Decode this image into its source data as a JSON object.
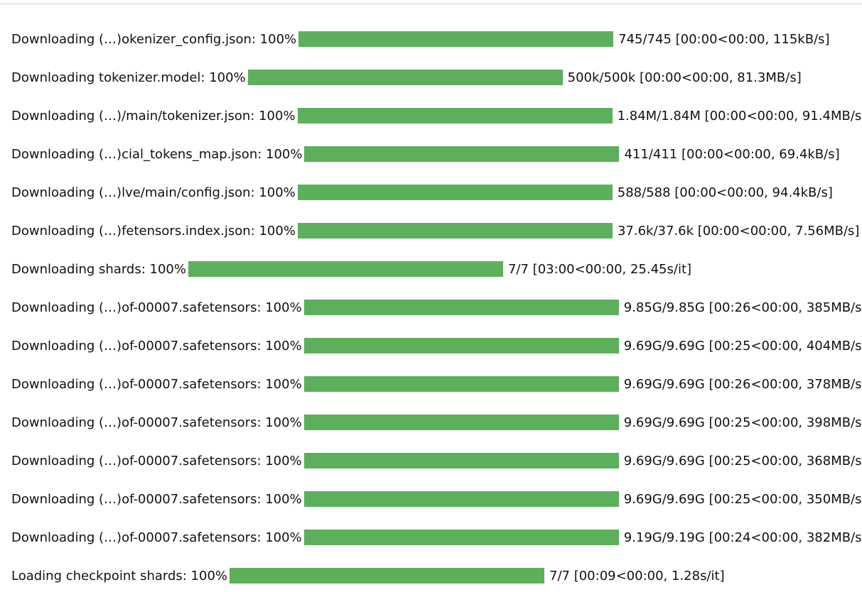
{
  "bar_color": "#5cb05c",
  "progress_rows": [
    {
      "prefix": "Downloading (…)okenizer_config.json: 100%",
      "progress": 1.0,
      "suffix": "745/745 [00:00<00:00, 115kB/s]"
    },
    {
      "prefix": "Downloading tokenizer.model: 100%",
      "progress": 1.0,
      "suffix": "500k/500k [00:00<00:00, 81.3MB/s]"
    },
    {
      "prefix": "Downloading (…)/main/tokenizer.json: 100%",
      "progress": 1.0,
      "suffix": "1.84M/1.84M [00:00<00:00, 91.4MB/s]"
    },
    {
      "prefix": "Downloading (…)cial_tokens_map.json: 100%",
      "progress": 1.0,
      "suffix": "411/411 [00:00<00:00, 69.4kB/s]"
    },
    {
      "prefix": "Downloading (…)lve/main/config.json: 100%",
      "progress": 1.0,
      "suffix": "588/588 [00:00<00:00, 94.4kB/s]"
    },
    {
      "prefix": "Downloading (…)fetensors.index.json: 100%",
      "progress": 1.0,
      "suffix": "37.6k/37.6k [00:00<00:00, 7.56MB/s]"
    },
    {
      "prefix": "Downloading shards: 100%",
      "progress": 1.0,
      "suffix": "7/7 [03:00<00:00, 25.45s/it]"
    },
    {
      "prefix": "Downloading (…)of-00007.safetensors: 100%",
      "progress": 1.0,
      "suffix": "9.85G/9.85G [00:26<00:00, 385MB/s]"
    },
    {
      "prefix": "Downloading (…)of-00007.safetensors: 100%",
      "progress": 1.0,
      "suffix": "9.69G/9.69G [00:25<00:00, 404MB/s]"
    },
    {
      "prefix": "Downloading (…)of-00007.safetensors: 100%",
      "progress": 1.0,
      "suffix": "9.69G/9.69G [00:26<00:00, 378MB/s]"
    },
    {
      "prefix": "Downloading (…)of-00007.safetensors: 100%",
      "progress": 1.0,
      "suffix": "9.69G/9.69G [00:25<00:00, 398MB/s]"
    },
    {
      "prefix": "Downloading (…)of-00007.safetensors: 100%",
      "progress": 1.0,
      "suffix": "9.69G/9.69G [00:25<00:00, 368MB/s]"
    },
    {
      "prefix": "Downloading (…)of-00007.safetensors: 100%",
      "progress": 1.0,
      "suffix": "9.69G/9.69G [00:25<00:00, 350MB/s]"
    },
    {
      "prefix": "Downloading (…)of-00007.safetensors: 100%",
      "progress": 1.0,
      "suffix": "9.19G/9.19G [00:24<00:00, 382MB/s]"
    },
    {
      "prefix": "Loading checkpoint shards: 100%",
      "progress": 1.0,
      "suffix": "7/7 [00:09<00:00, 1.28s/it]"
    }
  ]
}
